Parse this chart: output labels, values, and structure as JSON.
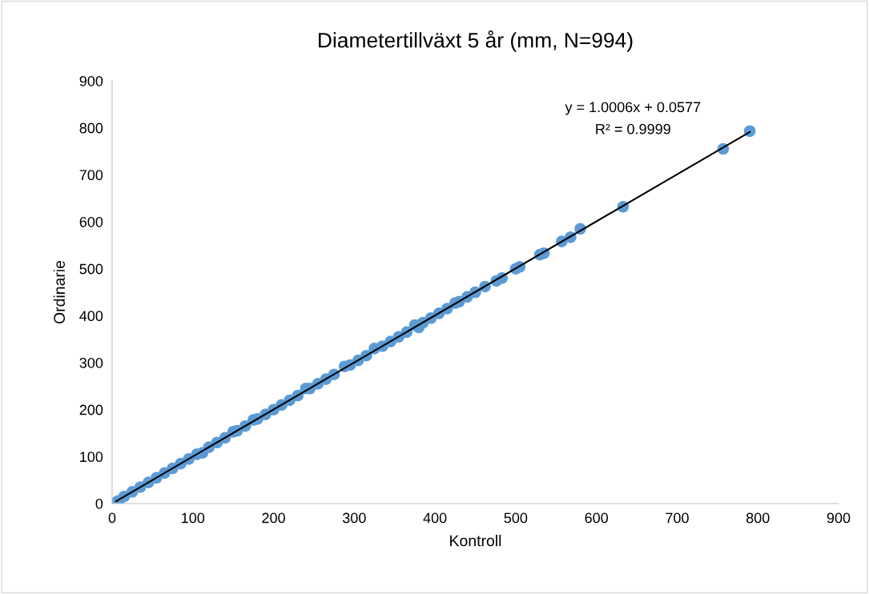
{
  "chart_data": {
    "type": "scatter",
    "title": "Diametertillväxt 5 år (mm, N=994)",
    "xlabel": "Kontroll",
    "ylabel": "Ordinarie",
    "xlim": [
      0,
      900
    ],
    "ylim": [
      0,
      900
    ],
    "xticks": [
      0,
      100,
      200,
      300,
      400,
      500,
      600,
      700,
      800,
      900
    ],
    "yticks": [
      0,
      100,
      200,
      300,
      400,
      500,
      600,
      700,
      800,
      900
    ],
    "grid": false,
    "legend": false,
    "annotations": [
      "y = 1.0006x + 0.0577",
      "R² = 0.9999"
    ],
    "series": [
      {
        "marker": "circle",
        "color": "#5b9bd5",
        "x": [
          5,
          8,
          15,
          25,
          35,
          45,
          55,
          65,
          75,
          85,
          95,
          105,
          112,
          120,
          130,
          140,
          150,
          155,
          165,
          175,
          180,
          190,
          200,
          210,
          220,
          230,
          240,
          245,
          255,
          265,
          275,
          288,
          295,
          305,
          315,
          325,
          335,
          345,
          355,
          365,
          375,
          380,
          385,
          395,
          405,
          415,
          425,
          430,
          440,
          450,
          462,
          476,
          483,
          500,
          505,
          530,
          535,
          557,
          568,
          580,
          633,
          757,
          790
        ],
        "values": [
          3,
          6,
          15,
          25,
          35,
          45,
          55,
          65,
          75,
          85,
          95,
          105,
          108,
          120,
          130,
          140,
          153,
          155,
          165,
          178,
          180,
          190,
          200,
          210,
          220,
          230,
          245,
          245,
          255,
          265,
          275,
          292,
          295,
          305,
          315,
          330,
          335,
          345,
          355,
          365,
          380,
          375,
          385,
          395,
          405,
          415,
          427,
          430,
          440,
          450,
          462,
          474,
          480,
          500,
          504,
          530,
          533,
          558,
          567,
          585,
          632,
          755,
          793
        ]
      },
      {
        "type": "line",
        "color": "#000000",
        "x": [
          5,
          790
        ],
        "values": [
          5,
          791
        ]
      }
    ]
  }
}
